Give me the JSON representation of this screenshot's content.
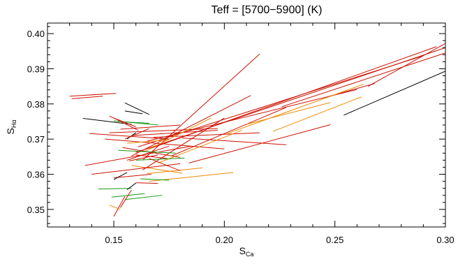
{
  "chart_data": {
    "type": "line",
    "title": "Teff = [5700−5900] (K)",
    "xlabel": {
      "main": "S",
      "sub": "Ca"
    },
    "ylabel": {
      "main": "S",
      "sub": "Hα"
    },
    "xlim": [
      0.12,
      0.3
    ],
    "ylim": [
      0.345,
      0.403
    ],
    "xticks": [
      0.15,
      0.2,
      0.25,
      0.3
    ],
    "xtick_labels": [
      "0.15",
      "0.20",
      "0.25",
      "0.30"
    ],
    "yticks": [
      0.35,
      0.36,
      0.37,
      0.38,
      0.39,
      0.4
    ],
    "ytick_labels": [
      "0.35",
      "0.36",
      "0.37",
      "0.38",
      "0.39",
      "0.40"
    ],
    "grid": false,
    "colors": {
      "black": "#000000",
      "red": "#cc1100",
      "orange": "#ee8800",
      "green": "#119911"
    },
    "segments": [
      {
        "color": "red",
        "x1": 0.13,
        "y1": 0.3822,
        "x2": 0.151,
        "y2": 0.383
      },
      {
        "color": "red",
        "x1": 0.131,
        "y1": 0.3815,
        "x2": 0.145,
        "y2": 0.3822
      },
      {
        "color": "black",
        "x1": 0.136,
        "y1": 0.3759,
        "x2": 0.158,
        "y2": 0.3742
      },
      {
        "color": "black",
        "x1": 0.155,
        "y1": 0.3803,
        "x2": 0.166,
        "y2": 0.377
      },
      {
        "color": "black",
        "x1": 0.155,
        "y1": 0.378,
        "x2": 0.163,
        "y2": 0.3772
      },
      {
        "color": "green",
        "x1": 0.15,
        "y1": 0.3752,
        "x2": 0.17,
        "y2": 0.374
      },
      {
        "color": "green",
        "x1": 0.152,
        "y1": 0.375,
        "x2": 0.166,
        "y2": 0.3745
      },
      {
        "color": "red",
        "x1": 0.148,
        "y1": 0.3765,
        "x2": 0.16,
        "y2": 0.3735
      },
      {
        "color": "red",
        "x1": 0.139,
        "y1": 0.3716,
        "x2": 0.175,
        "y2": 0.37
      },
      {
        "color": "red",
        "x1": 0.146,
        "y1": 0.37,
        "x2": 0.2,
        "y2": 0.3672
      },
      {
        "color": "red",
        "x1": 0.148,
        "y1": 0.3718,
        "x2": 0.197,
        "y2": 0.373
      },
      {
        "color": "red",
        "x1": 0.153,
        "y1": 0.3728,
        "x2": 0.18,
        "y2": 0.374
      },
      {
        "color": "red",
        "x1": 0.158,
        "y1": 0.371,
        "x2": 0.197,
        "y2": 0.3725
      },
      {
        "color": "red",
        "x1": 0.168,
        "y1": 0.3705,
        "x2": 0.216,
        "y2": 0.3718
      },
      {
        "color": "red",
        "x1": 0.181,
        "y1": 0.3703,
        "x2": 0.228,
        "y2": 0.3684
      },
      {
        "color": "red",
        "x1": 0.163,
        "y1": 0.364,
        "x2": 0.216,
        "y2": 0.3942
      },
      {
        "color": "red",
        "x1": 0.163,
        "y1": 0.3612,
        "x2": 0.2,
        "y2": 0.376
      },
      {
        "color": "red",
        "x1": 0.158,
        "y1": 0.3652,
        "x2": 0.212,
        "y2": 0.3824
      },
      {
        "color": "red",
        "x1": 0.176,
        "y1": 0.3652,
        "x2": 0.228,
        "y2": 0.379
      },
      {
        "color": "red",
        "x1": 0.184,
        "y1": 0.3632,
        "x2": 0.248,
        "y2": 0.3741
      },
      {
        "color": "red",
        "x1": 0.16,
        "y1": 0.3662,
        "x2": 0.3,
        "y2": 0.396
      },
      {
        "color": "red",
        "x1": 0.166,
        "y1": 0.3672,
        "x2": 0.296,
        "y2": 0.3963
      },
      {
        "color": "red",
        "x1": 0.161,
        "y1": 0.3678,
        "x2": 0.29,
        "y2": 0.3937
      },
      {
        "color": "red",
        "x1": 0.226,
        "y1": 0.3792,
        "x2": 0.3,
        "y2": 0.3945
      },
      {
        "color": "red",
        "x1": 0.265,
        "y1": 0.385,
        "x2": 0.3,
        "y2": 0.3972
      },
      {
        "color": "red",
        "x1": 0.247,
        "y1": 0.3821,
        "x2": 0.268,
        "y2": 0.3858
      },
      {
        "color": "red",
        "x1": 0.165,
        "y1": 0.3694,
        "x2": 0.26,
        "y2": 0.3841
      },
      {
        "color": "orange",
        "x1": 0.201,
        "y1": 0.3715,
        "x2": 0.263,
        "y2": 0.3856
      },
      {
        "color": "orange",
        "x1": 0.21,
        "y1": 0.3742,
        "x2": 0.248,
        "y2": 0.3804
      },
      {
        "color": "orange",
        "x1": 0.222,
        "y1": 0.3722,
        "x2": 0.262,
        "y2": 0.382
      },
      {
        "color": "black",
        "x1": 0.254,
        "y1": 0.3768,
        "x2": 0.3,
        "y2": 0.3893
      },
      {
        "color": "orange",
        "x1": 0.164,
        "y1": 0.3665,
        "x2": 0.194,
        "y2": 0.376
      },
      {
        "color": "orange",
        "x1": 0.17,
        "y1": 0.3632,
        "x2": 0.208,
        "y2": 0.3725
      },
      {
        "color": "orange",
        "x1": 0.166,
        "y1": 0.358,
        "x2": 0.204,
        "y2": 0.3605
      },
      {
        "color": "orange",
        "x1": 0.165,
        "y1": 0.3602,
        "x2": 0.19,
        "y2": 0.3618
      },
      {
        "color": "orange",
        "x1": 0.158,
        "y1": 0.3625,
        "x2": 0.181,
        "y2": 0.3603
      },
      {
        "color": "red",
        "x1": 0.137,
        "y1": 0.3625,
        "x2": 0.185,
        "y2": 0.368
      },
      {
        "color": "red",
        "x1": 0.14,
        "y1": 0.36,
        "x2": 0.18,
        "y2": 0.363
      },
      {
        "color": "red",
        "x1": 0.154,
        "y1": 0.3676,
        "x2": 0.18,
        "y2": 0.3648
      },
      {
        "color": "red",
        "x1": 0.156,
        "y1": 0.364,
        "x2": 0.175,
        "y2": 0.368
      },
      {
        "color": "green",
        "x1": 0.152,
        "y1": 0.3668,
        "x2": 0.178,
        "y2": 0.366
      },
      {
        "color": "green",
        "x1": 0.16,
        "y1": 0.364,
        "x2": 0.182,
        "y2": 0.3646
      },
      {
        "color": "green",
        "x1": 0.162,
        "y1": 0.3587,
        "x2": 0.175,
        "y2": 0.3583
      },
      {
        "color": "green",
        "x1": 0.143,
        "y1": 0.3558,
        "x2": 0.158,
        "y2": 0.356
      },
      {
        "color": "green",
        "x1": 0.149,
        "y1": 0.3535,
        "x2": 0.164,
        "y2": 0.3545
      },
      {
        "color": "green",
        "x1": 0.155,
        "y1": 0.3528,
        "x2": 0.172,
        "y2": 0.354
      },
      {
        "color": "red",
        "x1": 0.15,
        "y1": 0.359,
        "x2": 0.167,
        "y2": 0.36
      },
      {
        "color": "red",
        "x1": 0.16,
        "y1": 0.3576,
        "x2": 0.17,
        "y2": 0.3574
      },
      {
        "color": "red",
        "x1": 0.15,
        "y1": 0.348,
        "x2": 0.155,
        "y2": 0.3537
      },
      {
        "color": "red",
        "x1": 0.153,
        "y1": 0.3505,
        "x2": 0.158,
        "y2": 0.3555
      },
      {
        "color": "orange",
        "x1": 0.148,
        "y1": 0.3512,
        "x2": 0.153,
        "y2": 0.35
      },
      {
        "color": "black",
        "x1": 0.15,
        "y1": 0.3585,
        "x2": 0.156,
        "y2": 0.3605
      },
      {
        "color": "black",
        "x1": 0.156,
        "y1": 0.3556,
        "x2": 0.16,
        "y2": 0.3575
      },
      {
        "color": "black",
        "x1": 0.156,
        "y1": 0.37,
        "x2": 0.16,
        "y2": 0.3718
      },
      {
        "color": "red",
        "x1": 0.157,
        "y1": 0.3638,
        "x2": 0.17,
        "y2": 0.3655
      },
      {
        "color": "red",
        "x1": 0.16,
        "y1": 0.3655,
        "x2": 0.174,
        "y2": 0.3645
      },
      {
        "color": "orange",
        "x1": 0.156,
        "y1": 0.3688,
        "x2": 0.175,
        "y2": 0.3698
      },
      {
        "color": "red",
        "x1": 0.15,
        "y1": 0.376,
        "x2": 0.161,
        "y2": 0.3725
      },
      {
        "color": "red",
        "x1": 0.155,
        "y1": 0.37,
        "x2": 0.166,
        "y2": 0.373
      },
      {
        "color": "red",
        "x1": 0.166,
        "y1": 0.3645,
        "x2": 0.18,
        "y2": 0.361
      }
    ]
  }
}
